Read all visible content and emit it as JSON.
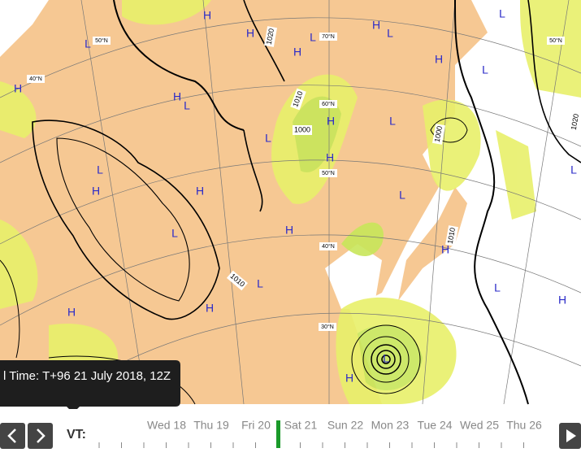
{
  "tooltip": "l Time: T+96 21 July 2018, 12Z",
  "map": {
    "pressure_centres": [
      "H",
      "H",
      "H",
      "H",
      "H",
      "H",
      "H",
      "H",
      "H",
      "H",
      "H",
      "H",
      "H",
      "H",
      "H",
      "H",
      "H",
      "L",
      "L",
      "L",
      "L",
      "L",
      "L",
      "L",
      "L",
      "L",
      "L",
      "L",
      "L",
      "L",
      "L",
      "L"
    ],
    "isobar_labels": [
      "1020",
      "1010",
      "1000",
      "1000",
      "1010",
      "1010",
      "1020"
    ],
    "latitude_labels": [
      "50°N",
      "40°N",
      "70°N",
      "60°N",
      "50°N",
      "40°N",
      "30°N",
      "50°N"
    ]
  },
  "timeline": {
    "label": "VT:",
    "days": [
      "Wed 18",
      "Thu 19",
      "Fri 20",
      "Sat 21",
      "Sun 22",
      "Mon 23",
      "Tue 24",
      "Wed 25",
      "Thu 26"
    ]
  }
}
